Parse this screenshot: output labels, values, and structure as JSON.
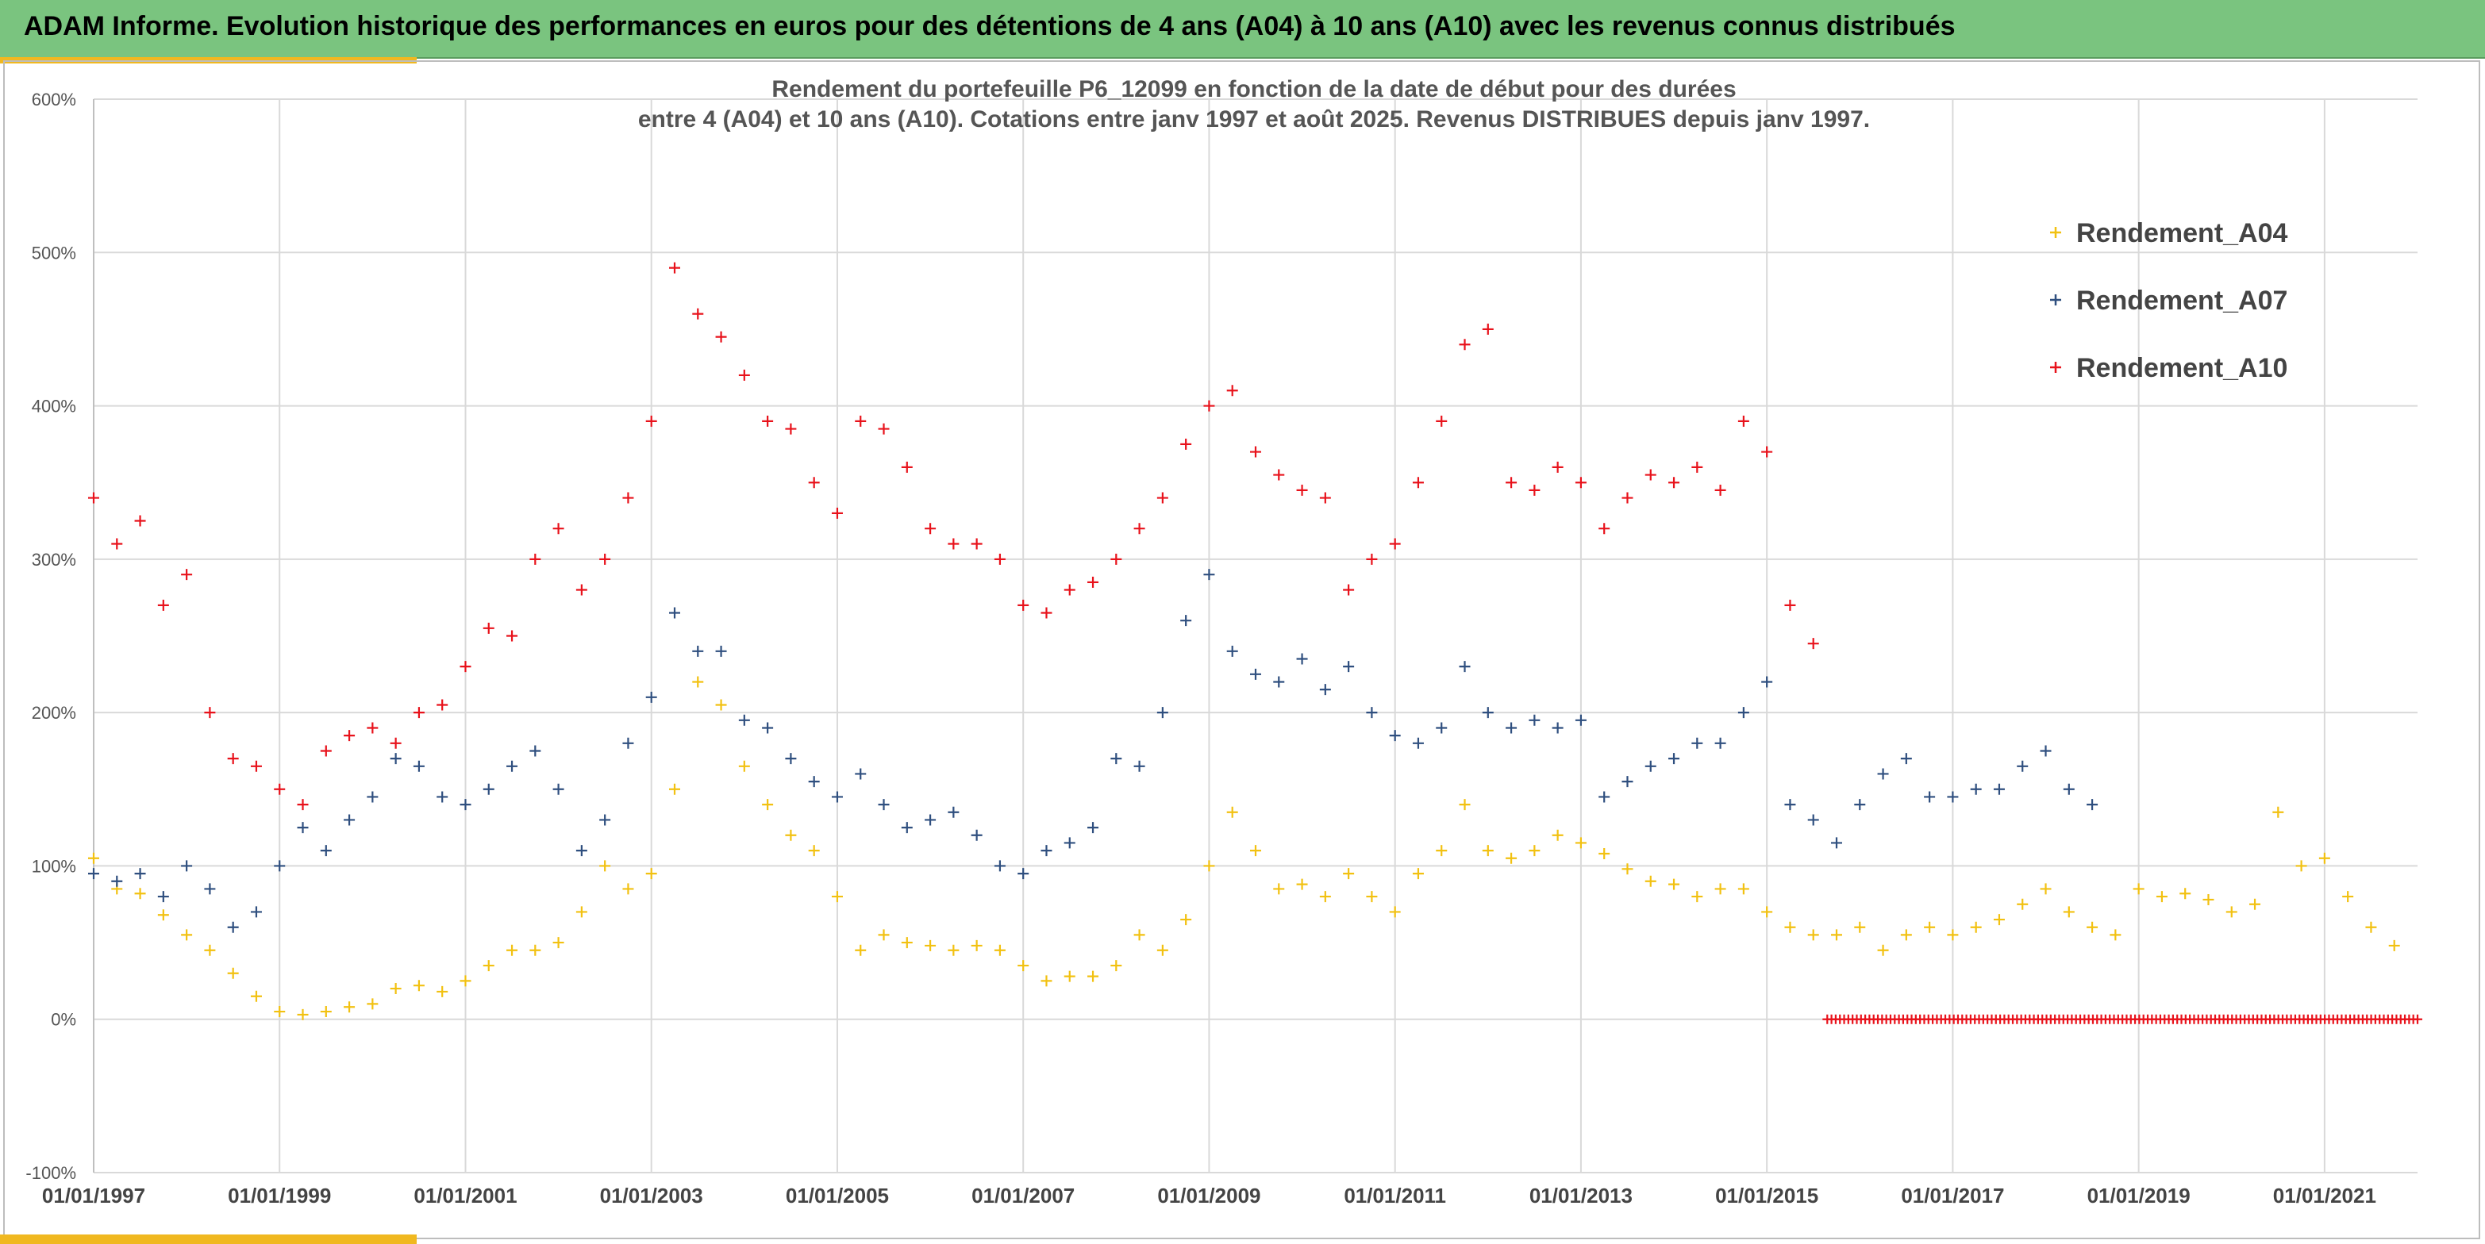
{
  "banner": {
    "title": "ADAM Informe. Evolution historique des performances en euros pour des détentions de 4 ans (A04) à 10 ans (A10) avec les revenus connus distribués"
  },
  "colors": {
    "banner_bg": "#7ac47f",
    "accent_gold": "#f0b820",
    "A04": "#f2c111",
    "A07": "#2f4f7f",
    "A10": "#e8121b",
    "grid": "#d9d9d9"
  },
  "chart_data": {
    "type": "scatter",
    "title_line1": "Rendement du portefeuille P6_12099 en fonction de la date de début pour des durées",
    "title_line2": "entre 4 (A04) et 10 ans (A10). Cotations entre janv 1997 et août 2025. Revenus DISTRIBUES depuis janv 1997.",
    "xlabel": "",
    "ylabel": "",
    "x_range": [
      1997.0,
      2022.0
    ],
    "ylim": [
      -100,
      600
    ],
    "y_ticks": [
      -100,
      0,
      100,
      200,
      300,
      400,
      500,
      600
    ],
    "y_tick_labels": [
      "-100%",
      "0%",
      "100%",
      "200%",
      "300%",
      "400%",
      "500%",
      "600%"
    ],
    "x_ticks": [
      1997,
      1999,
      2001,
      2003,
      2005,
      2007,
      2009,
      2011,
      2013,
      2015,
      2017,
      2019,
      2021
    ],
    "x_tick_labels": [
      "01/01/1997",
      "01/01/1999",
      "01/01/2001",
      "01/01/2003",
      "01/01/2005",
      "01/01/2007",
      "01/01/2009",
      "01/01/2011",
      "01/01/2013",
      "01/01/2015",
      "01/01/2017",
      "01/01/2019",
      "01/01/2021"
    ],
    "grid": true,
    "marker": "+",
    "legend_position": "right",
    "series": [
      {
        "name": "Rendement_A04",
        "color": "#f2c111",
        "x": [
          1997.0,
          1997.25,
          1997.5,
          1997.75,
          1998.0,
          1998.25,
          1998.5,
          1998.75,
          1999.0,
          1999.25,
          1999.5,
          1999.75,
          2000.0,
          2000.25,
          2000.5,
          2000.75,
          2001.0,
          2001.25,
          2001.5,
          2001.75,
          2002.0,
          2002.25,
          2002.5,
          2002.75,
          2003.0,
          2003.25,
          2003.5,
          2003.75,
          2004.0,
          2004.25,
          2004.5,
          2004.75,
          2005.0,
          2005.25,
          2005.5,
          2005.75,
          2006.0,
          2006.25,
          2006.5,
          2006.75,
          2007.0,
          2007.25,
          2007.5,
          2007.75,
          2008.0,
          2008.25,
          2008.5,
          2008.75,
          2009.0,
          2009.25,
          2009.5,
          2009.75,
          2010.0,
          2010.25,
          2010.5,
          2010.75,
          2011.0,
          2011.25,
          2011.5,
          2011.75,
          2012.0,
          2012.25,
          2012.5,
          2012.75,
          2013.0,
          2013.25,
          2013.5,
          2013.75,
          2014.0,
          2014.25,
          2014.5,
          2014.75,
          2015.0,
          2015.25,
          2015.5,
          2015.75,
          2016.0,
          2016.25,
          2016.5,
          2016.75,
          2017.0,
          2017.25,
          2017.5,
          2017.75,
          2018.0,
          2018.25,
          2018.5,
          2018.75,
          2019.0,
          2019.25,
          2019.5,
          2019.75,
          2020.0,
          2020.25,
          2020.5,
          2020.75,
          2021.0,
          2021.25,
          2021.5,
          2021.75
        ],
        "y": [
          105,
          85,
          82,
          68,
          55,
          45,
          30,
          15,
          5,
          3,
          5,
          8,
          10,
          20,
          22,
          18,
          25,
          35,
          45,
          45,
          50,
          70,
          100,
          85,
          95,
          150,
          220,
          205,
          165,
          140,
          120,
          110,
          80,
          45,
          55,
          50,
          48,
          45,
          48,
          45,
          35,
          25,
          28,
          28,
          35,
          55,
          45,
          65,
          100,
          135,
          110,
          85,
          88,
          80,
          95,
          80,
          70,
          95,
          110,
          140,
          110,
          105,
          110,
          120,
          115,
          108,
          98,
          90,
          88,
          80,
          85,
          85,
          70,
          60,
          55,
          55,
          60,
          45,
          55,
          60,
          55,
          60,
          65,
          75,
          85,
          70,
          60,
          55,
          85,
          80,
          82,
          78,
          70,
          75,
          135,
          100,
          105,
          80,
          60,
          48
        ]
      },
      {
        "name": "Rendement_A07",
        "color": "#2f4f7f",
        "x": [
          1997.0,
          1997.25,
          1997.5,
          1997.75,
          1998.0,
          1998.25,
          1998.5,
          1998.75,
          1999.0,
          1999.25,
          1999.5,
          1999.75,
          2000.0,
          2000.25,
          2000.5,
          2000.75,
          2001.0,
          2001.25,
          2001.5,
          2001.75,
          2002.0,
          2002.25,
          2002.5,
          2002.75,
          2003.0,
          2003.25,
          2003.5,
          2003.75,
          2004.0,
          2004.25,
          2004.5,
          2004.75,
          2005.0,
          2005.25,
          2005.5,
          2005.75,
          2006.0,
          2006.25,
          2006.5,
          2006.75,
          2007.0,
          2007.25,
          2007.5,
          2007.75,
          2008.0,
          2008.25,
          2008.5,
          2008.75,
          2009.0,
          2009.25,
          2009.5,
          2009.75,
          2010.0,
          2010.25,
          2010.5,
          2010.75,
          2011.0,
          2011.25,
          2011.5,
          2011.75,
          2012.0,
          2012.25,
          2012.5,
          2012.75,
          2013.0,
          2013.25,
          2013.5,
          2013.75,
          2014.0,
          2014.25,
          2014.5,
          2014.75,
          2015.0,
          2015.25,
          2015.5,
          2015.75,
          2016.0,
          2016.25,
          2016.5,
          2016.75,
          2017.0,
          2017.25,
          2017.5,
          2017.75,
          2018.0,
          2018.25,
          2018.5
        ],
        "y": [
          95,
          90,
          95,
          80,
          100,
          85,
          60,
          70,
          100,
          125,
          110,
          130,
          145,
          170,
          165,
          145,
          140,
          150,
          165,
          175,
          150,
          110,
          130,
          180,
          210,
          265,
          240,
          240,
          195,
          190,
          170,
          155,
          145,
          160,
          140,
          125,
          130,
          135,
          120,
          100,
          95,
          110,
          115,
          125,
          170,
          165,
          200,
          260,
          290,
          240,
          225,
          220,
          235,
          215,
          230,
          200,
          185,
          180,
          190,
          230,
          200,
          190,
          195,
          190,
          195,
          145,
          155,
          165,
          170,
          180,
          180,
          200,
          220,
          140,
          130,
          115,
          140,
          160,
          170,
          145,
          145,
          150,
          150,
          165,
          175,
          150,
          140
        ]
      },
      {
        "name": "Rendement_A10",
        "color": "#e8121b",
        "x": [
          1997.0,
          1997.25,
          1997.5,
          1997.75,
          1998.0,
          1998.25,
          1998.5,
          1998.75,
          1999.0,
          1999.25,
          1999.5,
          1999.75,
          2000.0,
          2000.25,
          2000.5,
          2000.75,
          2001.0,
          2001.25,
          2001.5,
          2001.75,
          2002.0,
          2002.25,
          2002.5,
          2002.75,
          2003.0,
          2003.25,
          2003.5,
          2003.75,
          2004.0,
          2004.25,
          2004.5,
          2004.75,
          2005.0,
          2005.25,
          2005.5,
          2005.75,
          2006.0,
          2006.25,
          2006.5,
          2006.75,
          2007.0,
          2007.25,
          2007.5,
          2007.75,
          2008.0,
          2008.25,
          2008.5,
          2008.75,
          2009.0,
          2009.25,
          2009.5,
          2009.75,
          2010.0,
          2010.25,
          2010.5,
          2010.75,
          2011.0,
          2011.25,
          2011.5,
          2011.75,
          2012.0,
          2012.25,
          2012.5,
          2012.75,
          2013.0,
          2013.25,
          2013.5,
          2013.75,
          2014.0,
          2014.25,
          2014.5,
          2014.75,
          2015.0,
          2015.25,
          2015.5
        ],
        "y": [
          340,
          310,
          325,
          270,
          290,
          200,
          170,
          165,
          150,
          140,
          175,
          185,
          190,
          180,
          200,
          205,
          230,
          255,
          250,
          300,
          320,
          280,
          300,
          340,
          390,
          490,
          460,
          445,
          420,
          390,
          385,
          350,
          330,
          390,
          385,
          360,
          320,
          310,
          310,
          300,
          270,
          265,
          280,
          285,
          300,
          320,
          340,
          375,
          400,
          410,
          370,
          355,
          345,
          340,
          280,
          300,
          310,
          350,
          390,
          440,
          450,
          350,
          345,
          360,
          350,
          320,
          340,
          355,
          350,
          360,
          345,
          390,
          370,
          270,
          245
        ]
      },
      {
        "name": "",
        "color": "#e8121b",
        "x_start": 2015.65,
        "x_end": 2022.0,
        "constant_y": 0
      }
    ]
  },
  "legend": [
    {
      "label": "Rendement_A04",
      "color": "#f2c111"
    },
    {
      "label": "Rendement_A07",
      "color": "#2f4f7f"
    },
    {
      "label": "Rendement_A10",
      "color": "#e8121b"
    }
  ]
}
